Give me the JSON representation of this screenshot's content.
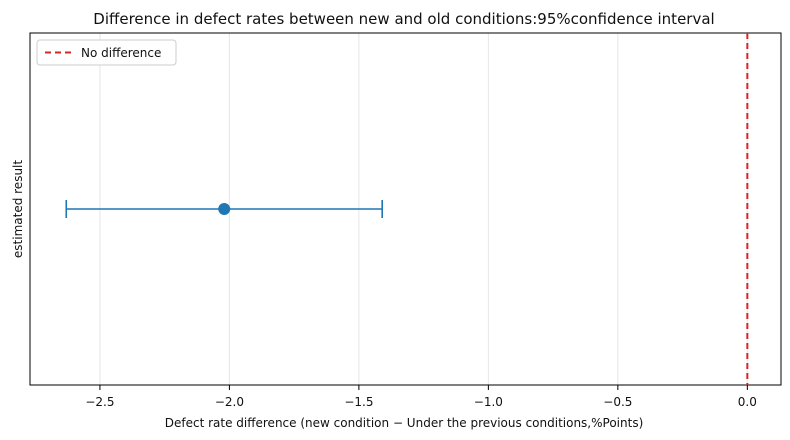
{
  "chart_data": {
    "type": "scatter",
    "title": "Difference in defect rates between new and old conditions:95%confidence interval",
    "xlabel": "Defect rate difference (new condition − Under the previous conditions,%Points)",
    "ylabel": "estimated result",
    "xlim": [
      -2.77,
      0.13
    ],
    "xticks": [
      -2.5,
      -2.0,
      -1.5,
      -1.0,
      -0.5,
      0.0
    ],
    "xtick_labels": [
      "−2.5",
      "−2.0",
      "−1.5",
      "−1.0",
      "−0.5",
      "0.0"
    ],
    "grid": "vertical",
    "estimate": {
      "value": -2.02,
      "ci_low": -2.63,
      "ci_high": -1.41
    },
    "reference_line": {
      "x": 0.0,
      "label": "No difference",
      "style": "dashed"
    },
    "legend": {
      "position": "top-left",
      "entries": [
        "No difference"
      ]
    },
    "colors": {
      "point": "#1f77b4",
      "reference": "#d62728",
      "grid": "#e6e6e6"
    }
  }
}
